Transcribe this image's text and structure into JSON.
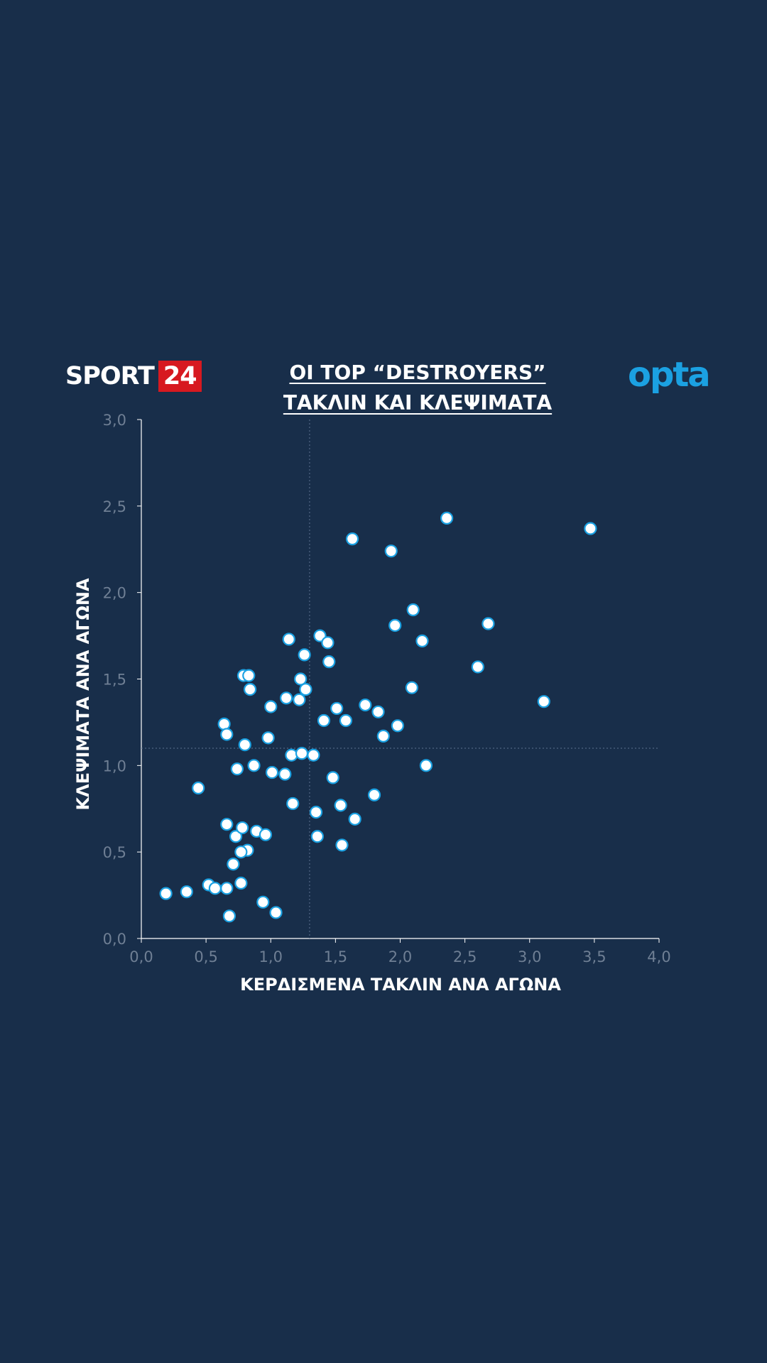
{
  "brand": {
    "text": "SPORT",
    "box": "24",
    "box_color": "#d71920"
  },
  "logo": {
    "text": "opta",
    "color": "#1ba1e2"
  },
  "colors": {
    "background": "#182e4a",
    "point_fill": "#ffffff",
    "point_stroke": "#1ba1e2",
    "tick_label": "#6f7f94"
  },
  "chart_data": {
    "type": "scatter",
    "title": [
      "OI TOP “DESTROYERS”",
      "ΤΑΚΛΙΝ ΚΑΙ ΚΛΕΨΙΜΑΤΑ"
    ],
    "xlabel": "ΚΕΡΔΙΣΜΕΝΑ ΤΑΚΛΙΝ ΑΝΑ ΑΓΩΝΑ",
    "ylabel": "ΚΛΕΨΙΜΑΤΑ ΑΝΑ ΑΓΩΝΑ",
    "xlim": [
      0,
      4
    ],
    "ylim": [
      0,
      3
    ],
    "xticks": [
      "0,0",
      "0,5",
      "1,0",
      "1,5",
      "2,0",
      "2,5",
      "3,0",
      "3,5",
      "4,0"
    ],
    "yticks": [
      "0,0",
      "0,5",
      "1,0",
      "1,5",
      "2,0",
      "2,5",
      "3,0"
    ],
    "reference_lines": {
      "x": 1.3,
      "y": 1.1
    },
    "points": [
      [
        0.19,
        0.26
      ],
      [
        0.35,
        0.27
      ],
      [
        0.44,
        0.87
      ],
      [
        0.52,
        0.31
      ],
      [
        0.57,
        0.29
      ],
      [
        0.66,
        0.29
      ],
      [
        0.68,
        0.13
      ],
      [
        0.71,
        0.43
      ],
      [
        0.77,
        0.32
      ],
      [
        0.94,
        0.21
      ],
      [
        1.04,
        0.15
      ],
      [
        0.64,
        1.24
      ],
      [
        0.66,
        1.18
      ],
      [
        0.74,
        0.98
      ],
      [
        0.8,
        1.12
      ],
      [
        0.84,
        1.44
      ],
      [
        0.79,
        1.52
      ],
      [
        0.83,
        1.52
      ],
      [
        0.87,
        1.0
      ],
      [
        0.98,
        1.16
      ],
      [
        1.0,
        1.34
      ],
      [
        1.01,
        0.96
      ],
      [
        1.11,
        0.95
      ],
      [
        1.12,
        1.39
      ],
      [
        1.14,
        1.73
      ],
      [
        1.16,
        1.06
      ],
      [
        1.17,
        0.78
      ],
      [
        1.22,
        1.38
      ],
      [
        1.23,
        1.5
      ],
      [
        1.24,
        1.07
      ],
      [
        1.26,
        1.64
      ],
      [
        1.27,
        1.44
      ],
      [
        1.33,
        1.06
      ],
      [
        1.35,
        0.73
      ],
      [
        1.36,
        0.59
      ],
      [
        1.38,
        1.75
      ],
      [
        1.41,
        1.26
      ],
      [
        1.44,
        1.71
      ],
      [
        1.45,
        1.6
      ],
      [
        1.48,
        0.93
      ],
      [
        1.51,
        1.33
      ],
      [
        1.54,
        0.77
      ],
      [
        1.55,
        0.54
      ],
      [
        1.58,
        1.26
      ],
      [
        1.63,
        2.31
      ],
      [
        1.65,
        0.69
      ],
      [
        1.73,
        1.35
      ],
      [
        1.8,
        0.83
      ],
      [
        1.83,
        1.31
      ],
      [
        1.87,
        1.17
      ],
      [
        1.93,
        2.24
      ],
      [
        1.96,
        1.81
      ],
      [
        1.98,
        1.23
      ],
      [
        2.09,
        1.45
      ],
      [
        2.1,
        1.9
      ],
      [
        2.17,
        1.72
      ],
      [
        2.2,
        1.0
      ],
      [
        2.36,
        2.43
      ],
      [
        2.6,
        1.57
      ],
      [
        2.68,
        1.82
      ],
      [
        3.11,
        1.37
      ],
      [
        3.47,
        2.37
      ],
      [
        0.66,
        0.66
      ],
      [
        0.73,
        0.59
      ],
      [
        0.78,
        0.64
      ],
      [
        0.82,
        0.51
      ],
      [
        0.77,
        0.5
      ],
      [
        0.89,
        0.62
      ],
      [
        0.96,
        0.6
      ]
    ]
  }
}
